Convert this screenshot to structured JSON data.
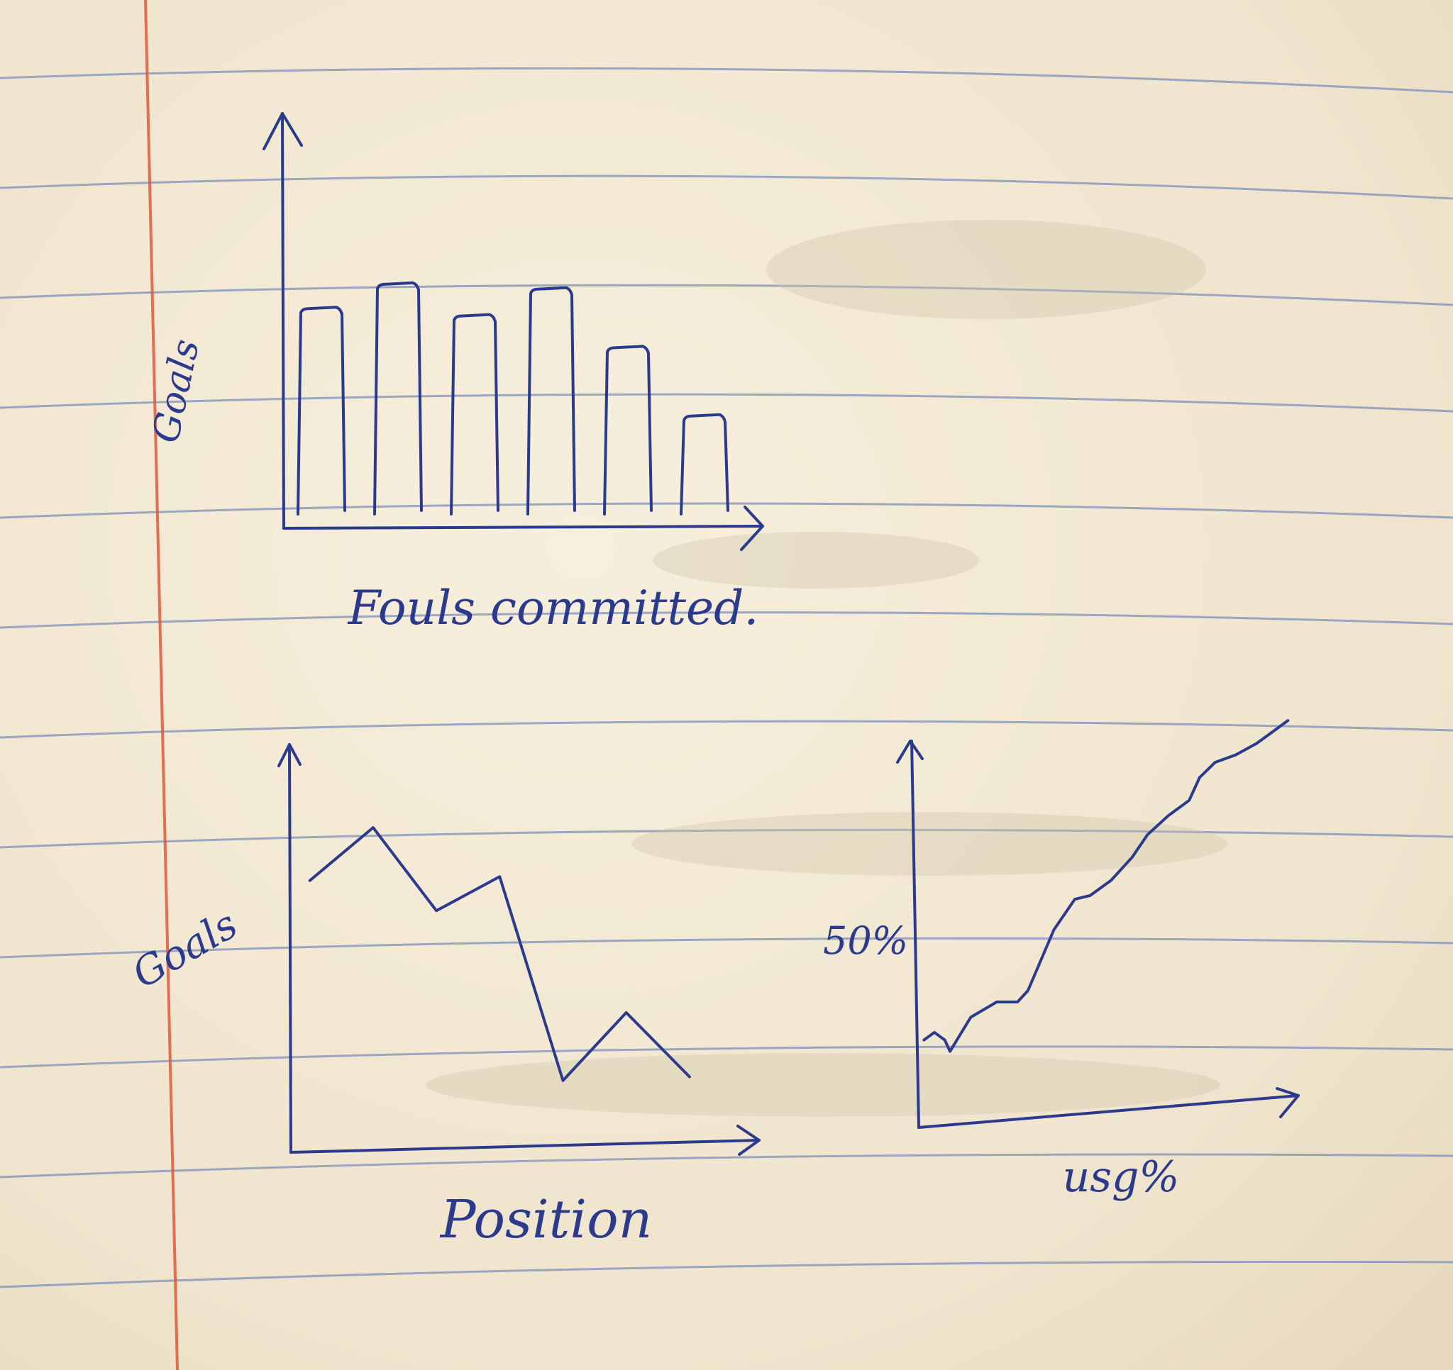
{
  "colors": {
    "paper": "#f3ead7",
    "rule_line": "#7d8fb8",
    "margin_line": "#e0583a",
    "ink": "#2b3a8c"
  },
  "chart_data": [
    {
      "type": "bar",
      "xlabel": "Fouls committed.",
      "ylabel": "Goals",
      "categories": [
        "",
        "",
        "",
        "",
        "",
        ""
      ],
      "values": [
        9.0,
        10.0,
        8.7,
        9.8,
        7.4,
        4.6
      ],
      "ylim": [
        0,
        17
      ],
      "grid": false
    },
    {
      "type": "line",
      "xlabel": "Position",
      "ylabel": "Goals",
      "x": [
        0,
        1,
        2,
        3,
        4,
        5,
        6
      ],
      "y": [
        7.2,
        8.6,
        6.4,
        7.3,
        1.9,
        3.7,
        2.0
      ],
      "xlim": [
        -0.3,
        7.1
      ],
      "ylim": [
        0,
        10.8
      ],
      "grid": false
    },
    {
      "type": "line",
      "xlabel": "usg%",
      "ylabel": "",
      "ytick_labels": [
        "50%"
      ],
      "x": [
        0.0,
        0.1,
        0.2,
        0.25,
        0.45,
        0.7,
        0.9,
        1.0,
        1.25,
        1.45,
        1.6,
        1.8,
        2.0,
        2.15,
        2.35,
        2.55,
        2.65,
        2.8,
        3.0,
        3.2,
        3.35,
        3.5
      ],
      "y": [
        2.3,
        2.5,
        2.3,
        2.0,
        2.9,
        3.3,
        3.3,
        3.6,
        5.2,
        6.0,
        6.1,
        6.5,
        7.1,
        7.7,
        8.2,
        8.6,
        9.2,
        9.6,
        9.8,
        10.1,
        10.4,
        10.7
      ],
      "xlim": [
        -0.05,
        3.6
      ],
      "ylim": [
        0,
        11.0
      ],
      "grid": false
    }
  ]
}
